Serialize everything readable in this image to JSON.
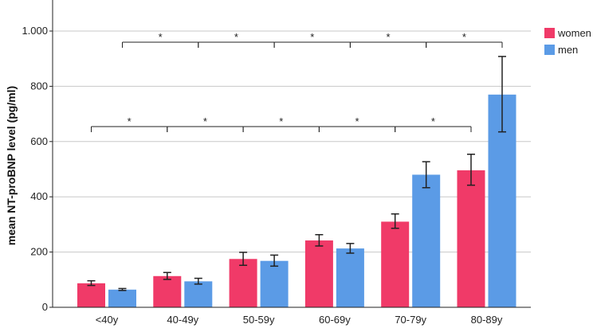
{
  "chart_data": {
    "type": "bar",
    "title": "",
    "xlabel": "",
    "ylabel": "mean NT-proBNP level (pg/ml)",
    "ylim": [
      0,
      1000
    ],
    "yticks": [
      0,
      200,
      400,
      600,
      800,
      1000
    ],
    "ytick_labels": [
      "0",
      "200",
      "400",
      "600",
      "800",
      "1.000"
    ],
    "grid": "horizontal",
    "legend_position": "top-right",
    "categories": [
      "<40y",
      "40-49y",
      "50-59y",
      "60-69y",
      "70-79y",
      "80-89y"
    ],
    "series": [
      {
        "name": "women",
        "color": "#f03a68",
        "values": [
          87,
          113,
          175,
          242,
          310,
          496
        ],
        "err_low": [
          79,
          101,
          152,
          222,
          286,
          442
        ],
        "err_high": [
          96,
          126,
          199,
          263,
          338,
          554
        ]
      },
      {
        "name": "men",
        "color": "#5b9be6",
        "values": [
          64,
          94,
          168,
          213,
          480,
          770
        ],
        "err_low": [
          61,
          84,
          149,
          196,
          433,
          635
        ],
        "err_high": [
          68,
          105,
          189,
          231,
          527,
          908
        ]
      }
    ],
    "significance": [
      {
        "series": "men",
        "pairs": [
          [
            0,
            1
          ],
          [
            1,
            2
          ],
          [
            2,
            3
          ],
          [
            3,
            4
          ],
          [
            4,
            5
          ]
        ],
        "label": "*"
      },
      {
        "series": "women",
        "pairs": [
          [
            0,
            1
          ],
          [
            1,
            2
          ],
          [
            2,
            3
          ],
          [
            3,
            4
          ],
          [
            4,
            5
          ]
        ],
        "label": "*"
      }
    ]
  }
}
